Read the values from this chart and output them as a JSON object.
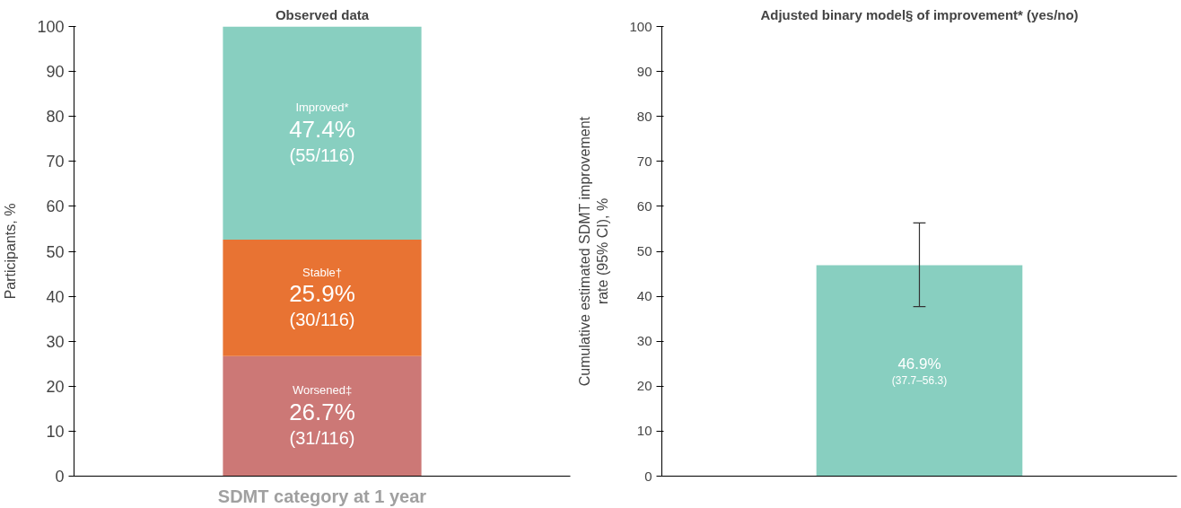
{
  "chart_data": [
    {
      "type": "bar",
      "title": "Observed data",
      "xlabel": "SDMT category at 1 year",
      "ylabel": "Participants, %",
      "categories": [
        null
      ],
      "stacked": true,
      "ylim": [
        0,
        100
      ],
      "yticks": [
        0,
        10,
        20,
        30,
        40,
        50,
        60,
        70,
        80,
        90,
        100
      ],
      "grid": false,
      "tick_labels": "y",
      "series": [
        {
          "name": "Worsened‡",
          "color": "#cc7876",
          "values": [
            26.7
          ],
          "value_labels": [
            "26.7%\n(31/116)"
          ]
        },
        {
          "name": "Stable†",
          "color": "#e87333",
          "values": [
            25.9
          ],
          "value_labels": [
            "25.9%\n(30/116)"
          ]
        },
        {
          "name": "Improved*",
          "color": "#88cfc0",
          "values": [
            47.4
          ],
          "value_labels": [
            "47.4%\n(55/116)"
          ]
        }
      ]
    },
    {
      "type": "bar",
      "title": "Adjusted binary model§ of improvement* (yes/no)",
      "ylabel": "Cumulative estimated SDMT improvement\nrate (95% CI), %",
      "categories": [
        null
      ],
      "ylim": [
        0,
        100
      ],
      "yticks": [
        0,
        10,
        20,
        30,
        40,
        50,
        60,
        70,
        80,
        90,
        100
      ],
      "grid": false,
      "tick_labels": "y",
      "series": [
        {
          "color": "#88cfc0",
          "values": [
            46.9
          ],
          "errors": [
            [
              37.7,
              56.3
            ]
          ],
          "value_labels": [
            "46.9%\n(37.7–56.3)"
          ]
        }
      ]
    }
  ]
}
